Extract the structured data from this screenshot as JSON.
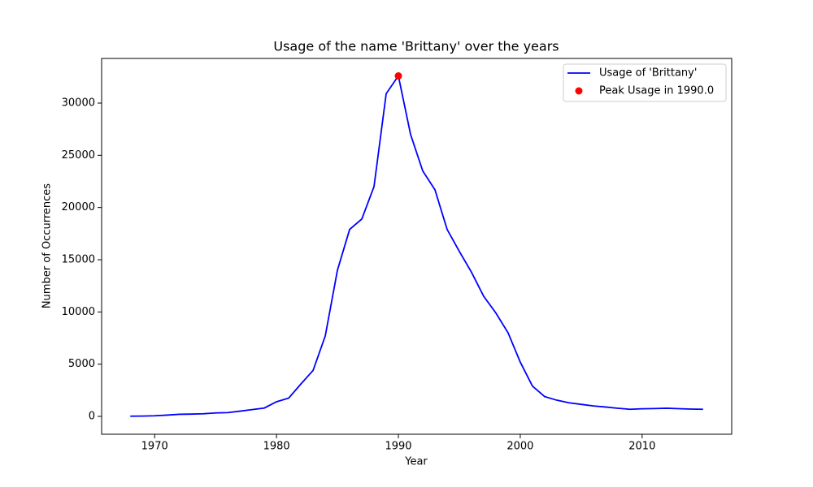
{
  "chart_data": {
    "type": "line",
    "title": "Usage of the name 'Brittany' over the years",
    "x_label": "Year",
    "y_label": "Number of Occurrences",
    "x": [
      1968,
      1969,
      1970,
      1971,
      1972,
      1973,
      1974,
      1975,
      1976,
      1977,
      1978,
      1979,
      1980,
      1981,
      1982,
      1983,
      1984,
      1985,
      1986,
      1987,
      1988,
      1989,
      1990,
      1991,
      1992,
      1993,
      1994,
      1995,
      1996,
      1997,
      1998,
      1999,
      2000,
      2001,
      2002,
      2003,
      2004,
      2005,
      2006,
      2007,
      2008,
      2009,
      2010,
      2011,
      2012,
      2013,
      2014,
      2015
    ],
    "series": [
      {
        "name": "Usage of 'Brittany'",
        "color": "#0000ff",
        "values": [
          20,
          30,
          60,
          120,
          200,
          220,
          250,
          330,
          360,
          500,
          650,
          800,
          1400,
          1750,
          3100,
          4400,
          7700,
          14000,
          17900,
          18900,
          22000,
          30900,
          32600,
          27000,
          23500,
          21700,
          17900,
          15800,
          13800,
          11500,
          9900,
          8000,
          5200,
          2900,
          1900,
          1550,
          1300,
          1150,
          1000,
          900,
          780,
          680,
          730,
          750,
          780,
          740,
          700,
          680
        ]
      }
    ],
    "peak": {
      "name": "Peak Usage in 1990.0",
      "color": "#ff0000",
      "x": 1990,
      "y": 32600
    },
    "xlim": [
      1965.65,
      2017.35
    ],
    "ylim": [
      -1710,
      34275
    ],
    "xticks": [
      1970,
      1980,
      1990,
      2000,
      2010
    ],
    "yticks": [
      0,
      5000,
      10000,
      15000,
      20000,
      25000,
      30000
    ],
    "legend": "upper right"
  }
}
